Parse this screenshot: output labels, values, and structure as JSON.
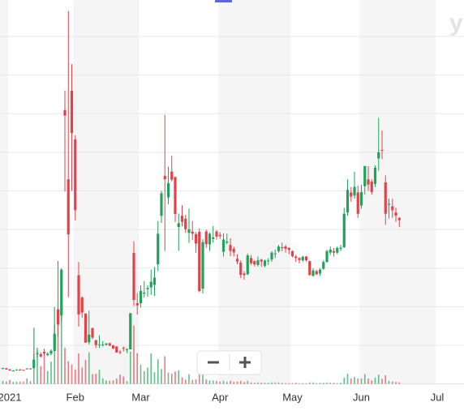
{
  "logo": "y",
  "chart_data": {
    "type": "candlestick",
    "categories": [
      null,
      null,
      "2021",
      null,
      null,
      null,
      null,
      null,
      null,
      null,
      null,
      null,
      null,
      null,
      null,
      null,
      null,
      null,
      null,
      null,
      null,
      "Feb",
      null,
      null,
      null,
      null,
      null,
      null,
      null,
      null,
      null,
      null,
      null,
      null,
      null,
      null,
      null,
      null,
      null,
      null,
      "Mar",
      null,
      null,
      null,
      null,
      null,
      null,
      null,
      null,
      null,
      null,
      null,
      null,
      null,
      null,
      null,
      null,
      null,
      null,
      null,
      null,
      null,
      null,
      "Apr",
      null,
      null,
      null,
      null,
      null,
      null,
      null,
      null,
      null,
      null,
      null,
      null,
      null,
      null,
      null,
      null,
      null,
      null,
      null,
      null,
      "May",
      null,
      null,
      null,
      null,
      null,
      null,
      null,
      null,
      null,
      null,
      null,
      null,
      null,
      null,
      null,
      null,
      null,
      null,
      null,
      "Jun",
      null,
      null,
      null,
      null,
      null,
      null,
      null,
      null,
      null,
      null,
      null,
      null,
      null,
      null,
      null,
      null,
      null,
      null,
      null,
      null,
      null,
      "Jul"
    ],
    "open": [
      19.5,
      20.4,
      19.0,
      17.3,
      17.3,
      18.5,
      18.2,
      19.4,
      20.0,
      20.4,
      38.5,
      38.5,
      41.5,
      37.4,
      39.2,
      42.6,
      96.7,
      88.6,
      354.8,
      265.0,
      379.7,
      316.6,
      140.8,
      112.0,
      91.2,
      54.0,
      72.4,
      56.6,
      50.8,
      50.0,
      50.8,
      52.7,
      49.8,
      48.5,
      41.3,
      46.7,
      44.7,
      44.7,
      169.6,
      104.5,
      104.5,
      116.9,
      122.5,
      125.0,
      128.2,
      154.9,
      217.7,
      269.4,
      241.6,
      275.0,
      268.0,
      203.2,
      217.8,
      214.0,
      195.7,
      197.3,
      194.0,
      197.0,
      123.5,
      197.5,
      180.7,
      187.8,
      197.5,
      193.0,
      171.0,
      183.0,
      180.0,
      175.0,
      162.0,
      157.0,
      143.0,
      142.0,
      163.0,
      159.0,
      154.0,
      161.0,
      153.0,
      160.0,
      161.0,
      169.0,
      172.0,
      177.0,
      178.0,
      176.0,
      172.0,
      165.0,
      163.0,
      160.0,
      165.0,
      159.0,
      140.0,
      146.0,
      143.0,
      149.0,
      158.0,
      170.0,
      172.0,
      170.0,
      175.0,
      177.0,
      222.0,
      248.0,
      244.0,
      248.0,
      231.0,
      256.0,
      265.0,
      262.0,
      259.0,
      292.0,
      303.0,
      261.0,
      232.0,
      230.0,
      222.0,
      215.0,
      null,
      null,
      null,
      null,
      null,
      null,
      null,
      null,
      null,
      null,
      null
    ],
    "high": [
      21.0,
      20.7,
      19.1,
      18.1,
      18.98,
      19.5,
      18.3,
      20.6,
      20.4,
      38.7,
      43.1,
      40.75,
      45.5,
      41.2,
      44.8,
      76.8,
      159.2,
      150.0,
      380.0,
      483.0,
      413.98,
      322.0,
      158.0,
      113.4,
      91.5,
      95.0,
      72.7,
      57.0,
      62.8,
      55.3,
      52.9,
      53.5,
      50.5,
      48.9,
      43.9,
      48.5,
      46.2,
      91.7,
      184.7,
      117.8,
      127.6,
      133.2,
      127.8,
      147.9,
      151.5,
      210.9,
      249.9,
      348.5,
      281.5,
      295.5,
      268.1,
      220.7,
      231.5,
      218.9,
      227.0,
      210.9,
      196.5,
      201.8,
      187.5,
      200.0,
      196.0,
      204.7,
      199.3,
      196.5,
      195.0,
      194.7,
      188.5,
      177.7,
      168.0,
      160.0,
      146.0,
      169.0,
      167.0,
      160.0,
      165.0,
      162.0,
      161.0,
      163.0,
      172.0,
      174.0,
      180.0,
      183.0,
      180.0,
      177.0,
      173.0,
      167.0,
      164.0,
      166.0,
      166.0,
      160.0,
      150.0,
      148.0,
      150.0,
      160.0,
      174.0,
      178.0,
      176.0,
      178.0,
      180.0,
      228.0,
      265.0,
      255.0,
      275.0,
      257.0,
      258.0,
      282.0,
      282.0,
      265.0,
      283.0,
      344.7,
      328.0,
      270.0,
      240.0,
      240.0,
      228.0,
      216.0,
      null,
      null,
      null,
      null,
      null,
      null,
      null,
      null,
      null,
      null,
      null
    ],
    "low": [
      19.0,
      18.5,
      17.2,
      17.2,
      17.3,
      18.0,
      17.1,
      19.0,
      19.3,
      20.0,
      34.0,
      34.0,
      36.6,
      36.1,
      37.0,
      42.3,
      61.1,
      80.2,
      249.0,
      112.3,
      250.0,
      212.0,
      74.2,
      85.3,
      53.3,
      51.1,
      58.0,
      46.5,
      46.5,
      48.2,
      49.5,
      49.0,
      45.0,
      40.6,
      38.5,
      42.0,
      40.0,
      44.7,
      101.0,
      90.0,
      99.0,
      112.2,
      113.1,
      115.3,
      114.0,
      146.0,
      208.5,
      172.0,
      232.6,
      262.3,
      209.8,
      172.4,
      204.0,
      195.7,
      182.7,
      186.1,
      170.1,
      118.7,
      116.9,
      176.3,
      172.0,
      182.7,
      187.0,
      188.0,
      165.0,
      181.0,
      165.5,
      165.0,
      155.0,
      137.0,
      135.0,
      141.0,
      154.0,
      152.0,
      152.0,
      152.0,
      151.0,
      154.0,
      158.0,
      163.0,
      170.0,
      172.0,
      170.0,
      168.0,
      164.0,
      158.0,
      156.0,
      158.0,
      158.0,
      140.0,
      139.0,
      141.0,
      140.0,
      148.0,
      157.0,
      167.0,
      165.0,
      168.0,
      172.0,
      176.0,
      218.0,
      236.0,
      240.0,
      215.0,
      227.0,
      245.0,
      250.0,
      245.0,
      255.0,
      276.0,
      291.0,
      206.0,
      214.0,
      215.0,
      210.0,
      203.0,
      null,
      null,
      null,
      null,
      null,
      null,
      null,
      null,
      null,
      null,
      null
    ],
    "close": [
      20.5,
      18.8,
      17.3,
      17.4,
      18.4,
      18.1,
      17.7,
      19.9,
      19.95,
      31.4,
      39.9,
      35.5,
      39.4,
      39.1,
      43.0,
      65.0,
      76.8,
      148.0,
      347.5,
      193.6,
      325.0,
      225.0,
      90.0,
      92.4,
      53.5,
      63.8,
      60.0,
      50.3,
      51.2,
      51.1,
      52.4,
      49.5,
      45.9,
      40.7,
      40.6,
      46.0,
      44.97,
      91.7,
      108.7,
      101.7,
      120.4,
      118.2,
      124.2,
      132.4,
      137.7,
      194.5,
      246.9,
      265.0,
      260.0,
      264.5,
      220.1,
      208.2,
      209.8,
      200.3,
      200.3,
      194.5,
      181.8,
      120.3,
      183.8,
      181.0,
      194.5,
      189.8,
      190.8,
      191.5,
      187.0,
      184.5,
      172.2,
      170.3,
      158.4,
      141.1,
      141.0,
      166.5,
      156.4,
      154.7,
      160.1,
      158.5,
      159.7,
      160.0,
      170.0,
      169.0,
      177.8,
      176.3,
      175.0,
      173.6,
      165.4,
      163.0,
      160.4,
      164.6,
      160.1,
      141.1,
      147.0,
      142.0,
      148.0,
      158.0,
      172.0,
      174.0,
      170.0,
      176.0,
      176.4,
      220.4,
      251.3,
      242.6,
      255.2,
      220.4,
      248.4,
      282.2,
      258.2,
      248.4,
      280.0,
      300.0,
      302.6,
      220.4,
      233.3,
      225.0,
      218.0,
      212.0,
      null,
      null,
      null,
      null,
      null,
      null,
      null,
      null,
      null,
      null,
      null
    ],
    "volume": [
      8,
      6,
      10,
      5,
      6,
      6,
      6,
      14,
      7,
      144,
      93,
      46,
      74,
      33,
      57,
      197,
      177,
      178,
      93,
      58,
      50,
      37,
      78,
      42,
      62,
      81,
      25,
      26,
      36,
      14,
      9,
      8,
      9,
      14,
      24,
      19,
      7,
      83,
      150,
      79,
      49,
      33,
      42,
      78,
      30,
      63,
      38,
      71,
      29,
      26,
      32,
      35,
      17,
      11,
      25,
      10,
      12,
      24,
      39,
      12,
      9,
      9,
      8,
      6,
      8,
      5,
      8,
      5,
      6,
      8,
      5,
      8,
      4,
      3,
      4,
      3,
      3,
      3,
      4,
      4,
      4,
      3,
      2,
      2,
      2,
      3,
      2,
      2,
      2,
      4,
      4,
      2,
      3,
      3,
      4,
      3,
      3,
      2,
      3,
      16,
      26,
      14,
      18,
      14,
      14,
      25,
      14,
      9,
      16,
      24,
      13,
      22,
      8,
      6,
      5,
      4,
      null,
      null,
      null,
      null,
      null,
      null,
      null,
      null,
      null,
      null,
      null
    ],
    "up_color": "#1fa35a",
    "down_color": "#e3424b",
    "ylim": [
      0,
      500
    ],
    "yticks": [
      50,
      100,
      150,
      200,
      250,
      300,
      350,
      400,
      450
    ],
    "y2lim": [
      0,
      990
    ],
    "grid": true
  }
}
